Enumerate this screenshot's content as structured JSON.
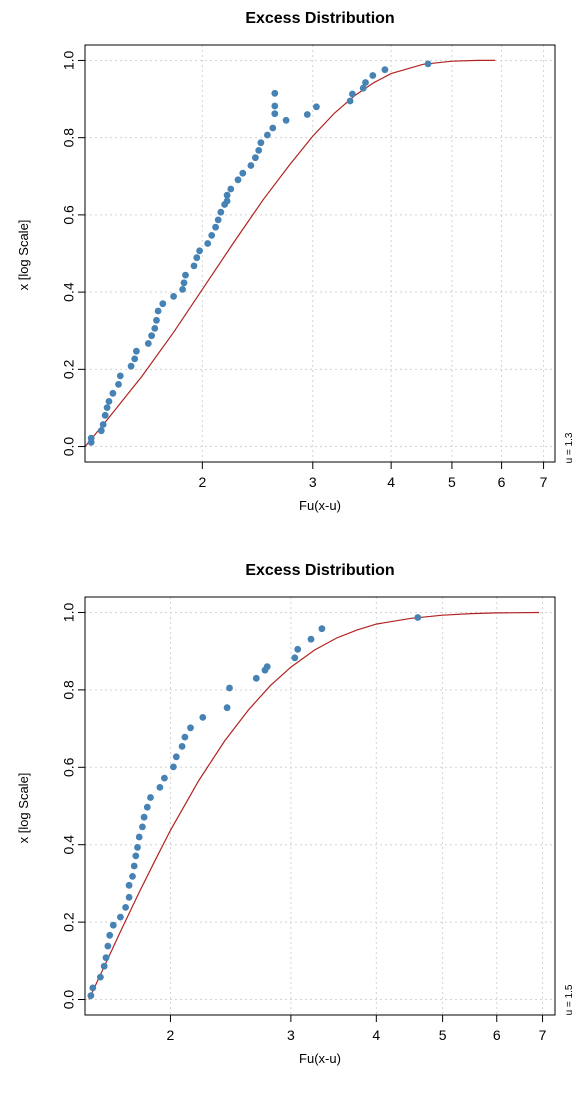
{
  "chart_data": [
    {
      "type": "scatter",
      "title": "Excess Distribution",
      "xlabel": "Fu(x-u)",
      "ylabel": "x [log Scale]",
      "side_label": "u = 1.3",
      "x_scale": "log",
      "xlim": [
        1.3,
        7.3
      ],
      "ylim": [
        0,
        1
      ],
      "x_ticks": [
        2,
        3,
        4,
        5,
        6,
        7
      ],
      "y_ticks": [
        "0.0",
        "0.2",
        "0.4",
        "0.6",
        "0.8",
        "1.0"
      ],
      "grid": true,
      "point_color": "#4682B4",
      "line_color": "#B22222",
      "points": {
        "x": [
          1.33,
          1.33,
          1.38,
          1.39,
          1.4,
          1.41,
          1.42,
          1.44,
          1.47,
          1.48,
          1.54,
          1.56,
          1.57,
          1.64,
          1.66,
          1.68,
          1.69,
          1.7,
          1.73,
          1.8,
          1.86,
          1.87,
          1.88,
          1.94,
          1.96,
          1.98,
          2.04,
          2.07,
          2.1,
          2.12,
          2.14,
          2.17,
          2.19,
          2.19,
          2.22,
          2.28,
          2.32,
          2.39,
          2.43,
          2.46,
          2.48,
          2.54,
          2.59,
          2.61,
          2.61,
          2.61,
          2.72,
          2.94,
          3.04,
          3.44,
          3.47,
          3.61,
          3.64,
          3.74,
          3.91,
          4.58
        ],
        "y": [
          0.011,
          0.022,
          0.041,
          0.057,
          0.081,
          0.101,
          0.117,
          0.138,
          0.161,
          0.183,
          0.208,
          0.227,
          0.247,
          0.267,
          0.287,
          0.306,
          0.327,
          0.351,
          0.37,
          0.389,
          0.407,
          0.424,
          0.444,
          0.468,
          0.489,
          0.507,
          0.526,
          0.547,
          0.568,
          0.587,
          0.607,
          0.627,
          0.636,
          0.651,
          0.667,
          0.691,
          0.708,
          0.728,
          0.748,
          0.767,
          0.787,
          0.807,
          0.825,
          0.862,
          0.882,
          0.915,
          0.845,
          0.86,
          0.88,
          0.895,
          0.913,
          0.928,
          0.943,
          0.961,
          0.976,
          0.991
        ]
      },
      "fitted_curve": {
        "x": [
          1.3,
          1.4,
          1.5,
          1.6,
          1.8,
          2.0,
          2.25,
          2.5,
          2.75,
          3.0,
          3.25,
          3.5,
          3.75,
          4.0,
          4.5,
          5.0,
          5.5,
          5.86
        ],
        "y": [
          0.0,
          0.063,
          0.124,
          0.181,
          0.296,
          0.407,
          0.531,
          0.639,
          0.728,
          0.804,
          0.864,
          0.909,
          0.942,
          0.966,
          0.99,
          0.998,
          1.0,
          1.0
        ]
      }
    },
    {
      "type": "scatter",
      "title": "Excess Distribution",
      "xlabel": "Fu(x-u)",
      "ylabel": "x [log Scale]",
      "side_label": "u = 1.5",
      "x_scale": "log",
      "xlim": [
        1.5,
        7.3
      ],
      "ylim": [
        0,
        1
      ],
      "x_ticks": [
        2,
        3,
        4,
        5,
        6,
        7
      ],
      "y_ticks": [
        "0.0",
        "0.2",
        "0.4",
        "0.6",
        "0.8",
        "1.0"
      ],
      "grid": true,
      "point_color": "#4682B4",
      "line_color": "#B22222",
      "points": {
        "x": [
          1.53,
          1.54,
          1.58,
          1.6,
          1.61,
          1.62,
          1.63,
          1.65,
          1.69,
          1.72,
          1.74,
          1.74,
          1.76,
          1.77,
          1.78,
          1.79,
          1.8,
          1.82,
          1.83,
          1.85,
          1.87,
          1.93,
          1.96,
          2.02,
          2.04,
          2.08,
          2.1,
          2.14,
          2.23,
          2.42,
          2.44,
          2.67,
          2.75,
          2.77,
          3.04,
          3.07,
          3.21,
          3.33,
          4.6
        ],
        "y": [
          0.01,
          0.03,
          0.058,
          0.086,
          0.108,
          0.138,
          0.166,
          0.192,
          0.213,
          0.238,
          0.264,
          0.295,
          0.318,
          0.345,
          0.371,
          0.393,
          0.42,
          0.446,
          0.471,
          0.497,
          0.522,
          0.548,
          0.572,
          0.601,
          0.627,
          0.654,
          0.678,
          0.702,
          0.729,
          0.754,
          0.805,
          0.83,
          0.851,
          0.86,
          0.883,
          0.905,
          0.931,
          0.958,
          0.987
        ]
      },
      "fitted_curve": {
        "x": [
          1.52,
          1.6,
          1.7,
          1.8,
          1.9,
          2.0,
          2.2,
          2.4,
          2.6,
          2.8,
          3.0,
          3.25,
          3.5,
          3.75,
          4.0,
          4.5,
          5.0,
          5.5,
          6.0,
          6.92
        ],
        "y": [
          0.0,
          0.085,
          0.185,
          0.277,
          0.36,
          0.437,
          0.566,
          0.668,
          0.748,
          0.811,
          0.859,
          0.903,
          0.934,
          0.955,
          0.97,
          0.985,
          0.993,
          0.997,
          0.999,
          1.0
        ]
      }
    }
  ]
}
